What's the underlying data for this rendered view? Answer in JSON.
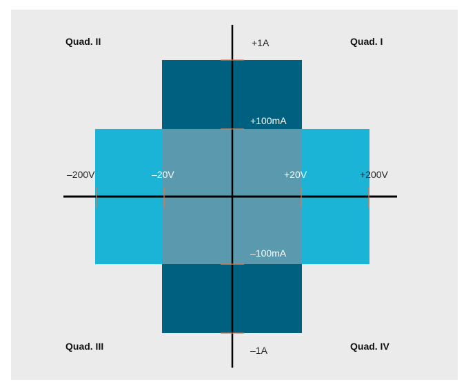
{
  "colors": {
    "panel_background": "#ebebeb",
    "voltage_band": "#1bb3d6",
    "current_band": "#006080",
    "overlap_region": "#5b9aae",
    "axis": "#000000",
    "tick": "#e07b4f"
  },
  "quadrants": {
    "q1": "Quad. I",
    "q2": "Quad. II",
    "q3": "Quad. III",
    "q4": "Quad. IV"
  },
  "current_axis": {
    "top": "+1A",
    "upper": "+100mA",
    "lower": "–100mA",
    "bottom": "–1A"
  },
  "voltage_axis": {
    "far_left": "–200V",
    "near_left": "–20V",
    "near_right": "+20V",
    "far_right": "+200V"
  }
}
